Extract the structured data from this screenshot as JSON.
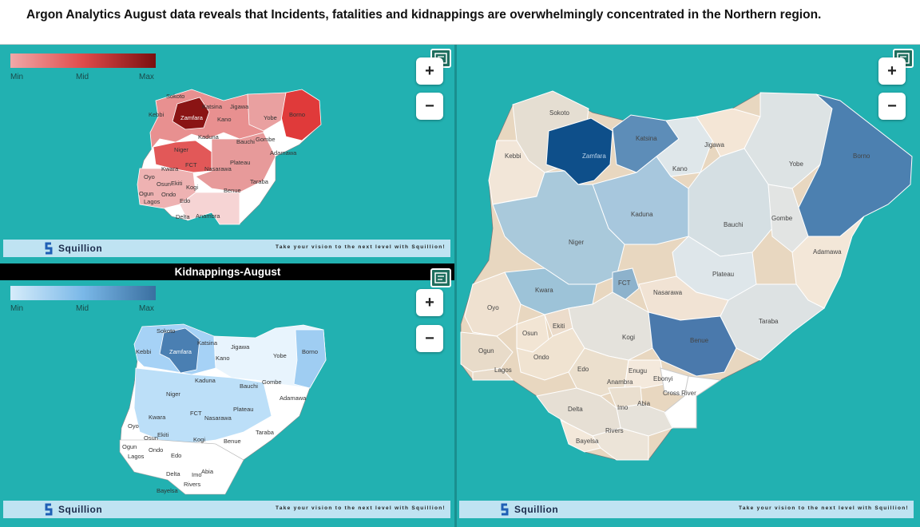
{
  "header": {
    "title": "Argon Analytics  August data reveals that Incidents, fatalities and kidnappings are overwhelmingly concentrated in the Northern region."
  },
  "legend": {
    "min": "Min",
    "mid": "Mid",
    "max": "Max"
  },
  "controls": {
    "zoom_in": "+",
    "zoom_out": "−"
  },
  "footer": {
    "brand": "Squillion",
    "tagline": "Take your vision to the next level with Squillion!"
  },
  "kidnappings_title": "Kidnappings-August",
  "colors": {
    "red_min": "#f0a8a8",
    "red_max": "#7a0f0f",
    "blue_min": "#d6ecfa",
    "blue_max": "#3a6fa0",
    "teal_bg": "#22b1b1"
  },
  "map_top_left": {
    "labels": [
      "Sokoto",
      "Katsina",
      "Jigawa",
      "Kebbi",
      "Kano",
      "Yobe",
      "Borno",
      "Kaduna",
      "Bauchi",
      "Gombe",
      "Niger",
      "Adamawa",
      "FCT",
      "Plateau",
      "Kwara",
      "Nasarawa",
      "Taraba",
      "Oyo",
      "Osun",
      "Ekiti",
      "Kogi",
      "Benue",
      "Ogun",
      "Ondo",
      "Lagos",
      "Edo",
      "Delta",
      "Anambra",
      "Zamfara"
    ]
  },
  "map_bottom_left": {
    "labels": [
      "Sokoto",
      "Katsina",
      "Jigawa",
      "Kebbi",
      "Zamfara",
      "Yobe",
      "Borno",
      "Kano",
      "Kaduna",
      "Bauchi",
      "Gombe",
      "Niger",
      "Adamawa",
      "FCT",
      "Plateau",
      "Kwara",
      "Nasarawa",
      "Oyo",
      "Taraba",
      "Osun",
      "Ekiti",
      "Kogi",
      "Benue",
      "Ogun",
      "Ondo",
      "Lagos",
      "Edo",
      "Delta",
      "Imo",
      "Abia",
      "Rivers",
      "Bayelsa"
    ]
  },
  "map_right": {
    "labels": [
      "Sokoto",
      "Katsina",
      "Jigawa",
      "Kebbi",
      "Zamfara",
      "Kano",
      "Yobe",
      "Borno",
      "Kaduna",
      "Bauchi",
      "Gombe",
      "Niger",
      "Adamawa",
      "FCT",
      "Plateau",
      "Kwara",
      "Nasarawa",
      "Oyo",
      "Taraba",
      "Ekiti",
      "Osun",
      "Kogi",
      "Benue",
      "Ogun",
      "Ondo",
      "Edo",
      "Lagos",
      "Enugu",
      "Anambra",
      "Ebonyi",
      "Cross River",
      "Abia",
      "Imo",
      "Delta",
      "Rivers",
      "Bayelsa"
    ]
  }
}
